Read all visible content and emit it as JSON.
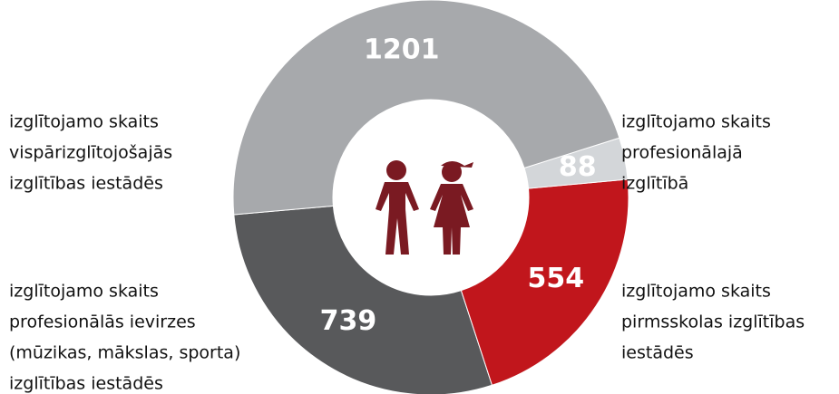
{
  "chart_data": {
    "type": "donut",
    "categories": [
      [
        "izglītojamo skaits",
        "vispārizglītojošajās",
        "izglītības iestādēs"
      ],
      [
        "izglītojamo skaits",
        "profesionālajā",
        "izglītībā"
      ],
      [
        "izglītojamo skaits",
        "pirmsskolas izglītības",
        "iestādēs"
      ],
      [
        "izglītojamo skaits",
        "profesionālās ievirzes",
        "(mūzikas, mākslas, sporta)",
        "izglītības iestādēs"
      ]
    ],
    "values": [
      1201,
      88,
      554,
      739
    ],
    "colors": [
      "#a7a9ac",
      "#d3d6d9",
      "#c1161c",
      "#58595b"
    ]
  }
}
